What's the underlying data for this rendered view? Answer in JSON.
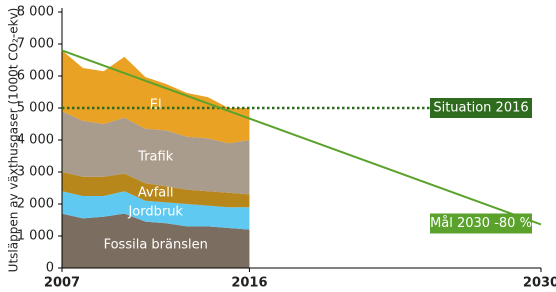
{
  "chart_data": {
    "type": "area",
    "y_label": "Utsläppen av växthusgaser (1000t CO₂-ekv)",
    "x": [
      2007,
      2008,
      2009,
      2010,
      2011,
      2012,
      2013,
      2014,
      2015,
      2016
    ],
    "series": [
      {
        "name": "Fossila bränslen",
        "color": "#7b6e61",
        "values": [
          1700,
          1550,
          1600,
          1700,
          1450,
          1400,
          1300,
          1300,
          1250,
          1200
        ]
      },
      {
        "name": "Jordbruk",
        "color": "#5fc9f1",
        "values": [
          700,
          700,
          650,
          700,
          650,
          650,
          700,
          650,
          650,
          700
        ]
      },
      {
        "name": "Avfall",
        "color": "#b8871b",
        "values": [
          600,
          600,
          600,
          550,
          550,
          500,
          450,
          450,
          450,
          400
        ]
      },
      {
        "name": "Trafik",
        "color": "#aa9c8c",
        "values": [
          1900,
          1750,
          1650,
          1750,
          1700,
          1750,
          1650,
          1650,
          1550,
          1700
        ]
      },
      {
        "name": "El",
        "color": "#e9a223",
        "values": [
          1900,
          1650,
          1650,
          1900,
          1620,
          1450,
          1370,
          1290,
          1100,
          1000
        ]
      }
    ],
    "target": {
      "name": "Mål 2030 -80 %",
      "color": "#5ba22d",
      "x": [
        2007,
        2030
      ],
      "values": [
        6800,
        1360
      ]
    },
    "situation": {
      "name": "Situation 2016",
      "color": "#2f6b1f",
      "value": 5000
    },
    "xlim": [
      2007,
      2030
    ],
    "xticks": [
      2007,
      2016,
      2030
    ],
    "ylim": [
      0,
      8000
    ],
    "yticks": [
      0,
      {
        "value": 1000,
        "label": "1 000"
      },
      {
        "value": 2000,
        "label": "2 000"
      },
      {
        "value": 3000,
        "label": "3 000"
      },
      {
        "value": 4000,
        "label": "4 000"
      },
      {
        "value": 5000,
        "label": "5 000"
      },
      {
        "value": 6000,
        "label": "6 000"
      },
      {
        "value": 7000,
        "label": "7 000"
      },
      {
        "value": 8000,
        "label": "8 000"
      }
    ]
  }
}
